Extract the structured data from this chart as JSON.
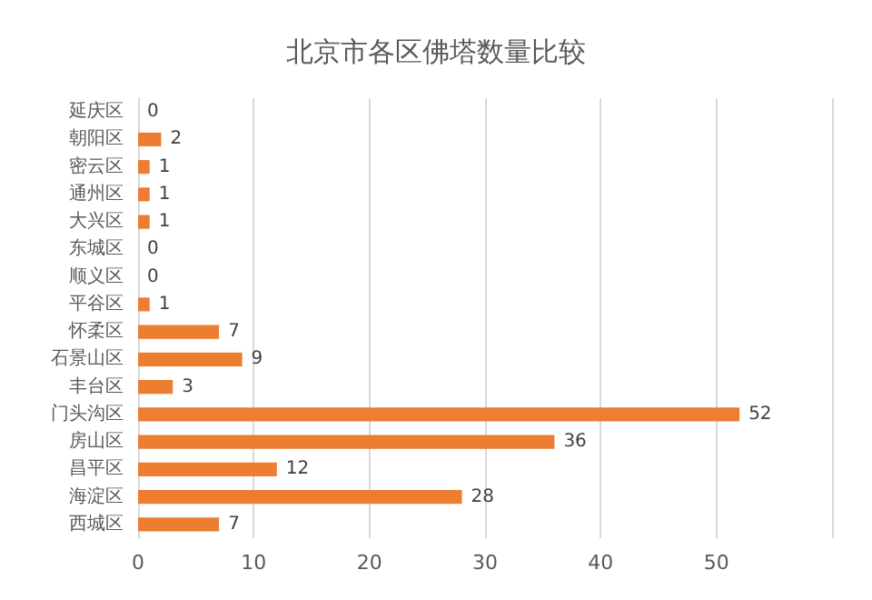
{
  "chart_data": {
    "type": "bar",
    "orientation": "horizontal",
    "title": "北京市各区佛塔数量比较",
    "categories": [
      "延庆区",
      "朝阳区",
      "密云区",
      "通州区",
      "大兴区",
      "东城区",
      "顺义区",
      "平谷区",
      "怀柔区",
      "石景山区",
      "丰台区",
      "门头沟区",
      "房山区",
      "昌平区",
      "海淀区",
      "西城区"
    ],
    "values": [
      0,
      2,
      1,
      1,
      1,
      0,
      0,
      1,
      7,
      9,
      3,
      52,
      36,
      12,
      28,
      7
    ],
    "color": "#ed7d31",
    "xlim": [
      0,
      60
    ],
    "xticks": [
      0,
      10,
      20,
      30,
      40,
      50,
      {
        "value": 60,
        "label": null
      }
    ],
    "grid": "x",
    "data_labels": true
  }
}
